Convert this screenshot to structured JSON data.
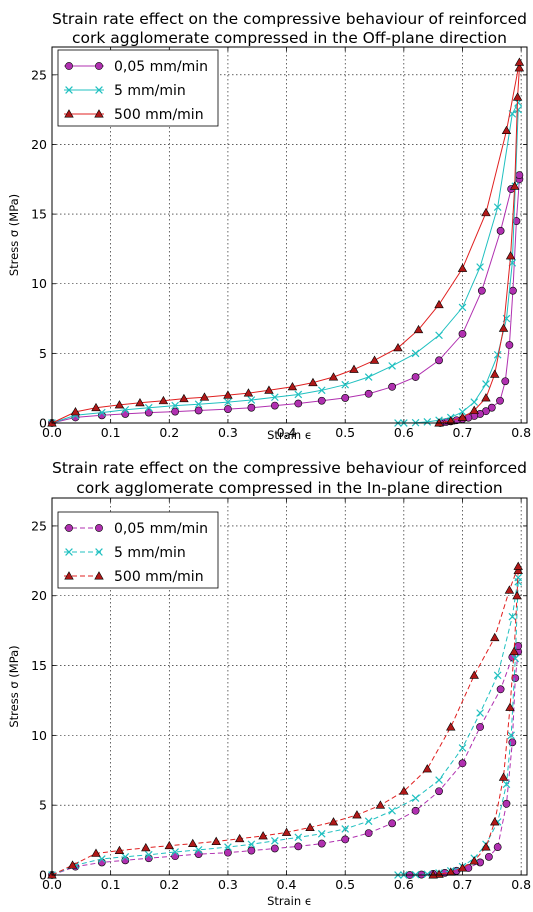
{
  "chart_data": [
    {
      "type": "line",
      "title": "Strain rate effect on the compressive behaviour of reinforced\ncork agglomerate compressed in the Off-plane direction",
      "xlabel": "Strain ϵ",
      "ylabel": "Stress σ (MPa)",
      "xlim": [
        0,
        0.81
      ],
      "ylim": [
        0,
        27
      ],
      "xticks": [
        "0.0",
        "0.1",
        "0.2",
        "0.3",
        "0.4",
        "0.5",
        "0.6",
        "0.7",
        "0.8"
      ],
      "yticks": [
        "0",
        "5",
        "10",
        "15",
        "20",
        "25"
      ],
      "grid": true,
      "legend_position": "top-left",
      "line_style": "solid",
      "series": [
        {
          "name": "0,05 mm/min",
          "color": "#b030b0",
          "marker": "circle",
          "x": [
            0,
            0.04,
            0.085,
            0.125,
            0.165,
            0.21,
            0.25,
            0.3,
            0.34,
            0.38,
            0.42,
            0.46,
            0.5,
            0.54,
            0.58,
            0.62,
            0.66,
            0.7,
            0.733,
            0.765,
            0.783,
            0.797
          ],
          "y": [
            0,
            0.4,
            0.55,
            0.65,
            0.75,
            0.82,
            0.9,
            1.0,
            1.1,
            1.25,
            1.4,
            1.6,
            1.8,
            2.1,
            2.6,
            3.3,
            4.5,
            6.4,
            9.5,
            13.8,
            16.8,
            17.8
          ],
          "unloading_x": [
            0.797,
            0.792,
            0.786,
            0.78,
            0.773,
            0.764,
            0.75,
            0.74,
            0.73,
            0.72,
            0.71,
            0.7,
            0.69,
            0.68,
            0.672,
            0.665,
            0.662
          ],
          "unloading_y": [
            17.5,
            14.5,
            9.5,
            5.6,
            3.0,
            1.6,
            1.1,
            0.85,
            0.65,
            0.5,
            0.38,
            0.28,
            0.2,
            0.12,
            0.07,
            0.03,
            0
          ]
        },
        {
          "name": "5 mm/min",
          "color": "#20c0c0",
          "marker": "x",
          "x": [
            0,
            0.04,
            0.085,
            0.125,
            0.165,
            0.21,
            0.25,
            0.3,
            0.34,
            0.38,
            0.42,
            0.46,
            0.5,
            0.54,
            0.58,
            0.62,
            0.66,
            0.7,
            0.73,
            0.76,
            0.785,
            0.795
          ],
          "y": [
            0,
            0.55,
            0.75,
            0.95,
            1.1,
            1.25,
            1.35,
            1.5,
            1.65,
            1.85,
            2.05,
            2.35,
            2.75,
            3.3,
            4.1,
            5.0,
            6.3,
            8.3,
            11.2,
            15.5,
            22.2,
            23.0
          ],
          "unloading_x": [
            0.795,
            0.79,
            0.785,
            0.775,
            0.76,
            0.74,
            0.72,
            0.7,
            0.68,
            0.66,
            0.64,
            0.62,
            0.6,
            0.59
          ],
          "unloading_y": [
            22.5,
            17.0,
            11.5,
            7.5,
            4.9,
            2.8,
            1.5,
            0.8,
            0.4,
            0.2,
            0.08,
            0.02,
            0,
            0
          ]
        },
        {
          "name": "500 mm/min",
          "color": "#e02020",
          "marker": "triangle",
          "x": [
            0,
            0.04,
            0.075,
            0.115,
            0.15,
            0.19,
            0.225,
            0.26,
            0.3,
            0.335,
            0.37,
            0.41,
            0.445,
            0.48,
            0.515,
            0.55,
            0.59,
            0.625,
            0.66,
            0.7,
            0.74,
            0.775,
            0.797
          ],
          "y": [
            0,
            0.8,
            1.1,
            1.3,
            1.45,
            1.6,
            1.75,
            1.85,
            2.0,
            2.15,
            2.35,
            2.6,
            2.9,
            3.3,
            3.85,
            4.5,
            5.4,
            6.7,
            8.5,
            11.1,
            15.1,
            21.0,
            25.9
          ],
          "unloading_x": [
            0.797,
            0.794,
            0.789,
            0.782,
            0.77,
            0.755,
            0.74,
            0.72,
            0.7,
            0.68,
            0.66
          ],
          "unloading_y": [
            25.5,
            23.4,
            17.0,
            12.0,
            6.8,
            3.5,
            1.8,
            0.9,
            0.4,
            0.15,
            0
          ]
        }
      ]
    },
    {
      "type": "line",
      "title": "Strain rate effect on the compressive behaviour of reinforced\ncork agglomerate compressed in the In-plane direction",
      "xlabel": "Strain ϵ",
      "ylabel": "Stress σ (MPa)",
      "xlim": [
        0,
        0.81
      ],
      "ylim": [
        0,
        27
      ],
      "xticks": [
        "0.0",
        "0.1",
        "0.2",
        "0.3",
        "0.4",
        "0.5",
        "0.6",
        "0.7",
        "0.8"
      ],
      "yticks": [
        "0",
        "5",
        "10",
        "15",
        "20",
        "25"
      ],
      "grid": true,
      "legend_position": "top-left",
      "line_style": "dashed",
      "series": [
        {
          "name": "0,05 mm/min",
          "color": "#b030b0",
          "marker": "circle",
          "x": [
            0,
            0.04,
            0.085,
            0.125,
            0.165,
            0.21,
            0.25,
            0.3,
            0.34,
            0.38,
            0.42,
            0.46,
            0.5,
            0.54,
            0.58,
            0.62,
            0.66,
            0.7,
            0.73,
            0.765,
            0.785,
            0.795
          ],
          "y": [
            0,
            0.6,
            0.9,
            1.05,
            1.2,
            1.35,
            1.5,
            1.6,
            1.75,
            1.9,
            2.05,
            2.25,
            2.55,
            3.0,
            3.7,
            4.6,
            6.0,
            8.0,
            10.6,
            13.3,
            15.6,
            16.4
          ],
          "unloading_x": [
            0.795,
            0.79,
            0.785,
            0.775,
            0.76,
            0.745,
            0.73,
            0.71,
            0.69,
            0.67,
            0.65,
            0.63,
            0.61
          ],
          "unloading_y": [
            16.0,
            14.1,
            9.5,
            5.1,
            2.0,
            1.3,
            0.9,
            0.5,
            0.3,
            0.15,
            0.08,
            0.03,
            0
          ]
        },
        {
          "name": "5 mm/min",
          "color": "#20c0c0",
          "marker": "x",
          "x": [
            0,
            0.04,
            0.085,
            0.125,
            0.165,
            0.21,
            0.25,
            0.3,
            0.34,
            0.38,
            0.42,
            0.46,
            0.5,
            0.54,
            0.58,
            0.62,
            0.66,
            0.7,
            0.73,
            0.76,
            0.785,
            0.795
          ],
          "y": [
            0,
            0.7,
            1.15,
            1.3,
            1.45,
            1.65,
            1.8,
            2.0,
            2.2,
            2.45,
            2.7,
            2.95,
            3.3,
            3.85,
            4.6,
            5.5,
            6.8,
            9.1,
            11.6,
            14.3,
            18.5,
            21.3
          ],
          "unloading_x": [
            0.795,
            0.79,
            0.783,
            0.775,
            0.76,
            0.74,
            0.72,
            0.7,
            0.68,
            0.66,
            0.64,
            0.62,
            0.6,
            0.59
          ],
          "unloading_y": [
            21.0,
            15.5,
            10.0,
            6.5,
            3.8,
            2.2,
            1.2,
            0.6,
            0.3,
            0.15,
            0.06,
            0.02,
            0,
            0
          ]
        },
        {
          "name": "500 mm/min",
          "color": "#e02020",
          "marker": "triangle",
          "x": [
            0,
            0.035,
            0.075,
            0.115,
            0.16,
            0.2,
            0.24,
            0.28,
            0.32,
            0.36,
            0.4,
            0.44,
            0.48,
            0.52,
            0.56,
            0.6,
            0.64,
            0.68,
            0.72,
            0.755,
            0.78,
            0.795
          ],
          "y": [
            0,
            0.7,
            1.55,
            1.75,
            1.95,
            2.1,
            2.25,
            2.4,
            2.6,
            2.8,
            3.05,
            3.4,
            3.8,
            4.3,
            5.0,
            6.0,
            7.6,
            10.6,
            14.3,
            17.0,
            20.4,
            22.1
          ],
          "unloading_x": [
            0.795,
            0.793,
            0.788,
            0.781,
            0.77,
            0.755,
            0.74,
            0.72,
            0.7,
            0.68,
            0.66,
            0.65
          ],
          "unloading_y": [
            21.8,
            20.0,
            16.0,
            12.0,
            7.0,
            3.8,
            2.0,
            1.0,
            0.5,
            0.2,
            0.05,
            0
          ]
        }
      ]
    }
  ]
}
